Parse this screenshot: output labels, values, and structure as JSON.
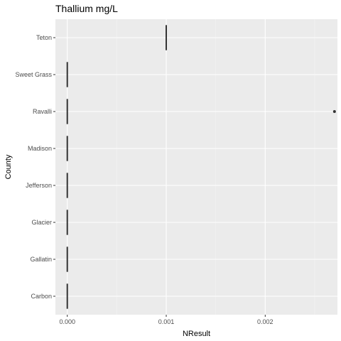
{
  "chart_data": {
    "type": "boxplot",
    "orientation": "horizontal",
    "title": "Thallium mg/L",
    "xlabel": "NResult",
    "ylabel": "County",
    "xlim": [
      -0.00012,
      0.00273
    ],
    "x_ticks": [
      0.0,
      0.001,
      0.002
    ],
    "x_tick_labels": [
      "0.000",
      "0.001",
      "0.002"
    ],
    "categories": [
      "Carbon",
      "Gallatin",
      "Glacier",
      "Jefferson",
      "Madison",
      "Ravalli",
      "Sweet Grass",
      "Teton"
    ],
    "boxes": [
      {
        "category": "Carbon",
        "min": 0,
        "q1": 0,
        "median": 0,
        "q3": 0,
        "max": 0,
        "outliers": []
      },
      {
        "category": "Gallatin",
        "min": 0,
        "q1": 0,
        "median": 0,
        "q3": 0,
        "max": 0,
        "outliers": []
      },
      {
        "category": "Glacier",
        "min": 0,
        "q1": 0,
        "median": 0,
        "q3": 0,
        "max": 0,
        "outliers": []
      },
      {
        "category": "Jefferson",
        "min": 0,
        "q1": 0,
        "median": 0,
        "q3": 0,
        "max": 0,
        "outliers": []
      },
      {
        "category": "Madison",
        "min": 0,
        "q1": 0,
        "median": 0,
        "q3": 0,
        "max": 0,
        "outliers": []
      },
      {
        "category": "Ravalli",
        "min": 0,
        "q1": 0,
        "median": 0,
        "q3": 0,
        "max": 0,
        "outliers": [
          0.0027
        ]
      },
      {
        "category": "Sweet Grass",
        "min": 0,
        "q1": 0,
        "median": 0,
        "q3": 0,
        "max": 0,
        "outliers": []
      },
      {
        "category": "Teton",
        "min": 0.001,
        "q1": 0.001,
        "median": 0.001,
        "q3": 0.001,
        "max": 0.001,
        "outliers": []
      }
    ],
    "grid": true,
    "legend": "none",
    "colors": {
      "panel": "#ebebeb",
      "grid_major": "#ffffff",
      "grid_minor": "#f3f3f3",
      "box": "#333333",
      "text": "#4d4d4d"
    }
  }
}
